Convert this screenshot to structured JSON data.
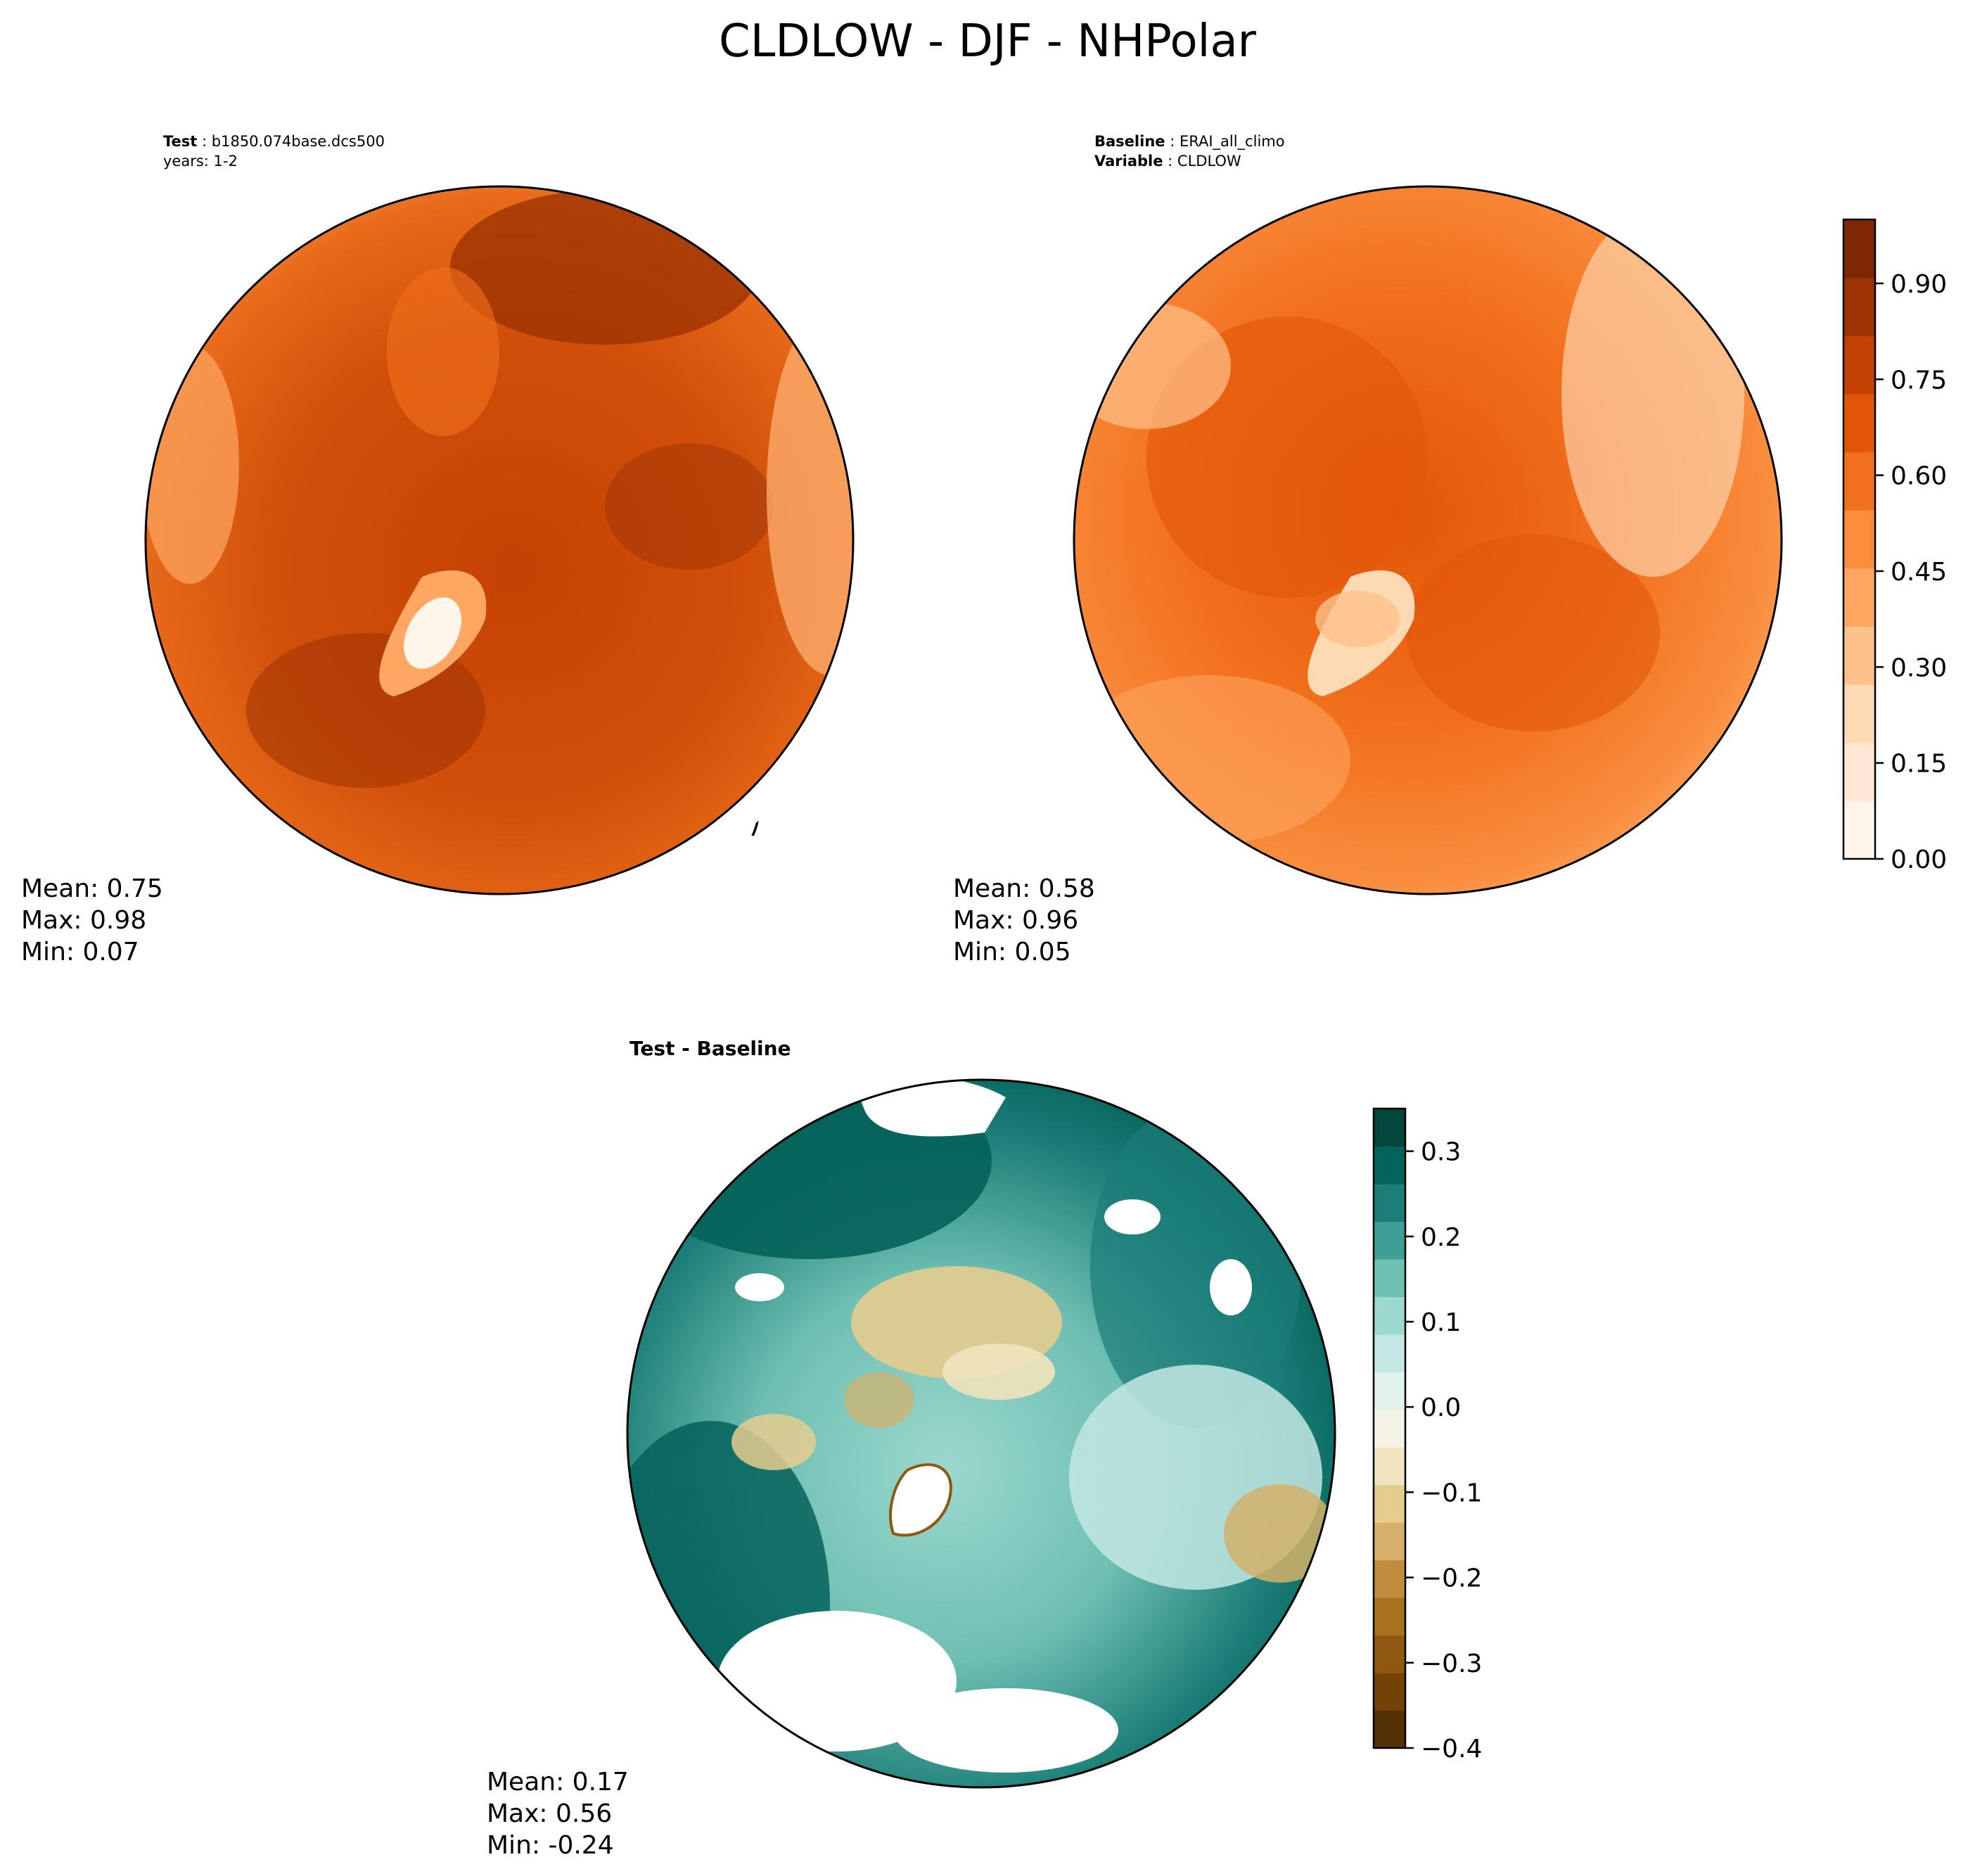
{
  "title": "CLDLOW - DJF - NHPolar",
  "chart_data": [
    {
      "type": "heatmap",
      "projection": "north-polar-stereographic",
      "header": [
        {
          "key": "Test",
          "value": "b1850.074base.dcs500"
        },
        {
          "key": "",
          "value": "years: 1-2"
        }
      ],
      "stats": {
        "mean": "Mean:  0.75",
        "max": "Max:  0.98",
        "min": "Min:  0.07"
      },
      "colormap": "Oranges",
      "colorbar": "shared"
    },
    {
      "type": "heatmap",
      "projection": "north-polar-stereographic",
      "header": [
        {
          "key": "Baseline",
          "value": "ERAI_all_climo"
        },
        {
          "key": "Variable",
          "value": "CLDLOW"
        }
      ],
      "stats": {
        "mean": "Mean:  0.58",
        "max": "Max:  0.96",
        "min": "Min:  0.05"
      },
      "colormap": "Oranges",
      "colorbar": {
        "range": [
          0,
          1
        ],
        "ticks": [
          0.0,
          0.15,
          0.3,
          0.45,
          0.6,
          0.75,
          0.9
        ],
        "tick_labels": [
          "0.00",
          "0.15",
          "0.30",
          "0.45",
          "0.60",
          "0.75",
          "0.90"
        ],
        "colors": [
          "#fff5eb",
          "#fee8d3",
          "#fdd9b4",
          "#fdc28c",
          "#fda762",
          "#fb8d3d",
          "#f2701d",
          "#e25609",
          "#c44103",
          "#9e3303",
          "#7f2704"
        ]
      }
    },
    {
      "type": "heatmap",
      "projection": "north-polar-stereographic",
      "header": [
        {
          "key": "Test - Baseline",
          "value": ""
        }
      ],
      "stats": {
        "mean": "Mean:  0.17",
        "max": "Max:  0.56",
        "min": "Min: -0.24"
      },
      "colormap": "BrBG",
      "colorbar": {
        "range": [
          -0.4,
          0.35
        ],
        "ticks": [
          -0.4,
          -0.3,
          -0.2,
          -0.1,
          0.0,
          0.1,
          0.2,
          0.3
        ],
        "tick_labels": [
          "−0.4",
          "−0.3",
          "−0.2",
          "−0.1",
          "0.0",
          "0.1",
          "0.2",
          "0.3"
        ],
        "colors": [
          "#543005",
          "#744206",
          "#8f5810",
          "#a8711e",
          "#c08d3e",
          "#d4b06a",
          "#e5cc8f",
          "#f1e3bd",
          "#f5f2e6",
          "#e2f2ef",
          "#c3e8e3",
          "#9bd8ce",
          "#6fbfb3",
          "#3f9e95",
          "#1b7e77",
          "#03625a",
          "#01473b"
        ]
      }
    }
  ]
}
